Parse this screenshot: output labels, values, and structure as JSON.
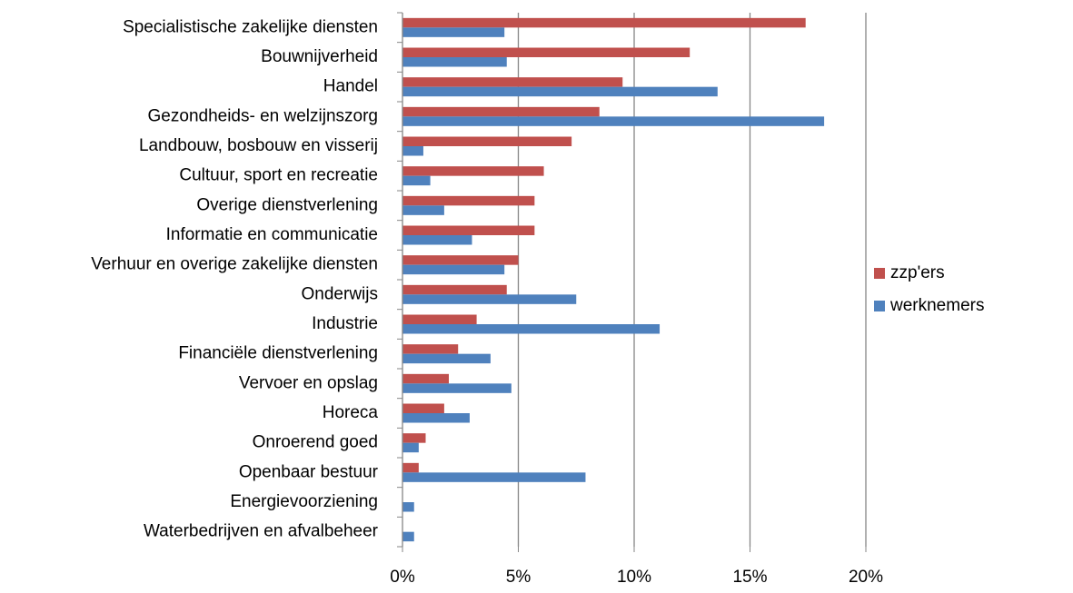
{
  "chart_data": {
    "type": "hbar",
    "categories": [
      "Specialistische zakelijke diensten",
      "Bouwnijverheid",
      "Handel",
      "Gezondheids- en welzijnszorg",
      "Landbouw, bosbouw en visserij",
      "Cultuur, sport en recreatie",
      "Overige dienstverlening",
      "Informatie en communicatie",
      "Verhuur en overige zakelijke diensten",
      "Onderwijs",
      "Industrie",
      "Financiële dienstverlening",
      "Vervoer en opslag",
      "Horeca",
      "Onroerend goed",
      "Openbaar bestuur",
      "Energievoorziening",
      "Waterbedrijven en afvalbeheer"
    ],
    "series": [
      {
        "name": "zzp'ers",
        "color": "#c0504d",
        "values": [
          17.4,
          12.4,
          9.5,
          8.5,
          7.3,
          6.1,
          5.7,
          5.7,
          5.0,
          4.5,
          3.2,
          2.4,
          2.0,
          1.8,
          1.0,
          0.7,
          0,
          0
        ]
      },
      {
        "name": "werknemers",
        "color": "#4f81bd",
        "values": [
          4.4,
          4.5,
          13.6,
          18.2,
          0.9,
          1.2,
          1.8,
          3.0,
          4.4,
          7.5,
          11.1,
          3.8,
          4.7,
          2.9,
          0.7,
          7.9,
          0.5,
          0.5
        ]
      }
    ],
    "xlim": [
      0,
      20
    ],
    "xticks": [
      {
        "value": 0,
        "label": "0%"
      },
      {
        "value": 5,
        "label": "5%"
      },
      {
        "value": 10,
        "label": "10%"
      },
      {
        "value": 15,
        "label": "15%"
      },
      {
        "value": 20,
        "label": "20%"
      }
    ],
    "grid": true,
    "legend": "right"
  }
}
